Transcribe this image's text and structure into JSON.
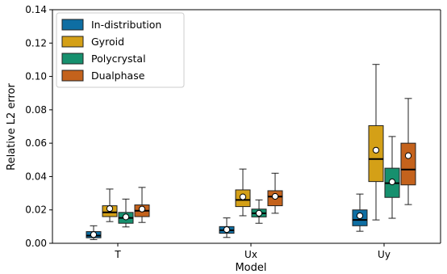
{
  "chart_data": {
    "type": "box",
    "xlabel": "Model",
    "ylabel": "Relative L2 error",
    "ylim": [
      0,
      0.14
    ],
    "yticks": [
      "0.00",
      "0.02",
      "0.04",
      "0.06",
      "0.08",
      "0.10",
      "0.12",
      "0.14"
    ],
    "grid": false,
    "legend_position": "top-left",
    "categories": [
      "T",
      "Ux",
      "Uy"
    ],
    "series": [
      {
        "name": "In-distribution",
        "color": "#0e6ea3",
        "boxes": [
          {
            "whisker_low": 0.0022,
            "q1": 0.0033,
            "median": 0.0046,
            "q3": 0.007,
            "whisker_high": 0.0105,
            "mean": 0.0052
          },
          {
            "whisker_low": 0.0035,
            "q1": 0.006,
            "median": 0.0078,
            "q3": 0.01,
            "whisker_high": 0.0152,
            "mean": 0.0082
          },
          {
            "whisker_low": 0.0072,
            "q1": 0.0105,
            "median": 0.014,
            "q3": 0.02,
            "whisker_high": 0.0295,
            "mean": 0.0165
          }
        ]
      },
      {
        "name": "Gyroid",
        "color": "#d4a017",
        "boxes": [
          {
            "whisker_low": 0.013,
            "q1": 0.016,
            "median": 0.0185,
            "q3": 0.0225,
            "whisker_high": 0.0325,
            "mean": 0.0208
          },
          {
            "whisker_low": 0.0165,
            "q1": 0.022,
            "median": 0.026,
            "q3": 0.032,
            "whisker_high": 0.0445,
            "mean": 0.0278
          },
          {
            "whisker_low": 0.014,
            "q1": 0.037,
            "median": 0.0505,
            "q3": 0.0705,
            "whisker_high": 0.1072,
            "mean": 0.0558
          }
        ]
      },
      {
        "name": "Polycrystal",
        "color": "#16906e",
        "boxes": [
          {
            "whisker_low": 0.0098,
            "q1": 0.012,
            "median": 0.0152,
            "q3": 0.0185,
            "whisker_high": 0.0265,
            "mean": 0.0158
          },
          {
            "whisker_low": 0.012,
            "q1": 0.0158,
            "median": 0.018,
            "q3": 0.0205,
            "whisker_high": 0.026,
            "mean": 0.018
          },
          {
            "whisker_low": 0.015,
            "q1": 0.0275,
            "median": 0.036,
            "q3": 0.045,
            "whisker_high": 0.064,
            "mean": 0.0368
          }
        ]
      },
      {
        "name": "Dualphase",
        "color": "#c4621c",
        "boxes": [
          {
            "whisker_low": 0.0125,
            "q1": 0.016,
            "median": 0.0195,
            "q3": 0.023,
            "whisker_high": 0.0335,
            "mean": 0.0205
          },
          {
            "whisker_low": 0.018,
            "q1": 0.0225,
            "median": 0.028,
            "q3": 0.0315,
            "whisker_high": 0.042,
            "mean": 0.0281
          },
          {
            "whisker_low": 0.0232,
            "q1": 0.035,
            "median": 0.0442,
            "q3": 0.06,
            "whisker_high": 0.0868,
            "mean": 0.0525
          }
        ]
      }
    ]
  }
}
